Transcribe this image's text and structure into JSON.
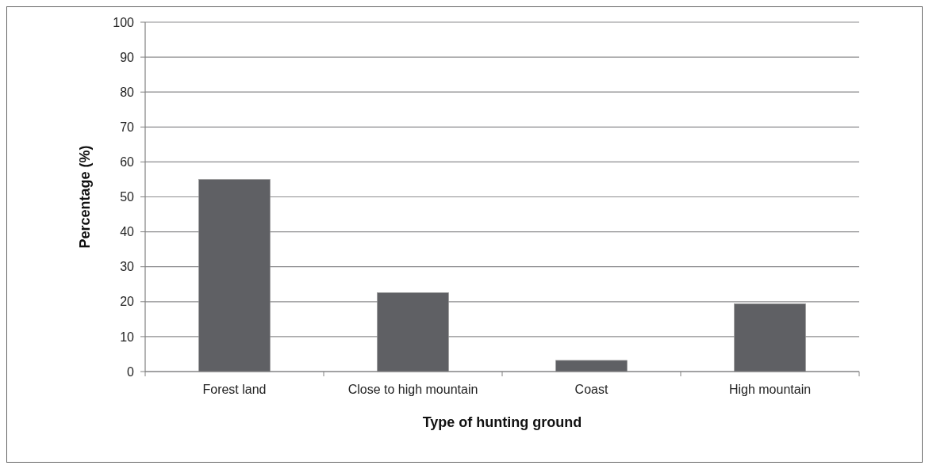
{
  "chart_data": {
    "type": "bar",
    "xlabel": "Type of hunting ground",
    "ylabel": "Percentage (%)",
    "categories": [
      "Forest land",
      "Close to high mountain",
      "Coast",
      "High mountain"
    ],
    "values": [
      55,
      22.6,
      3.2,
      19.4
    ],
    "color": "#5f6064",
    "ylim": [
      0,
      100
    ],
    "yticks": [
      0,
      10,
      20,
      30,
      40,
      50,
      60,
      70,
      80,
      90,
      100
    ],
    "grid": "y"
  }
}
